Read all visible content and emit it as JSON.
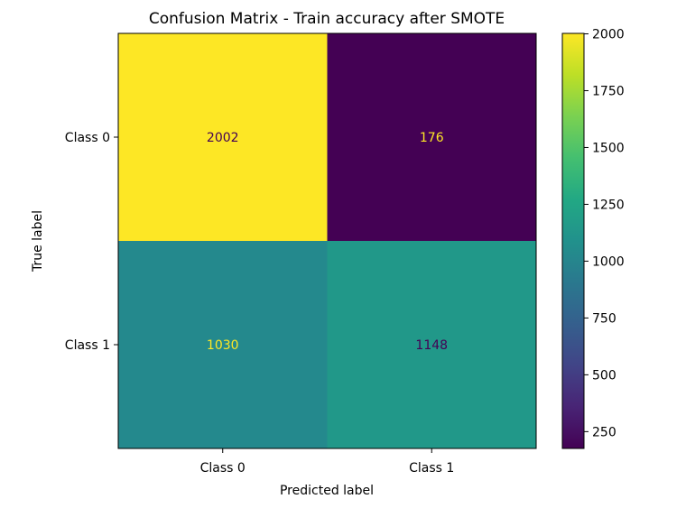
{
  "chart_data": {
    "type": "heatmap",
    "title": "Confusion Matrix - Train accuracy after SMOTE",
    "xlabel": "Predicted label",
    "ylabel": "True label",
    "x_categories": [
      "Class 0",
      "Class 1"
    ],
    "y_categories": [
      "Class 0",
      "Class 1"
    ],
    "values": [
      [
        2002,
        176
      ],
      [
        1030,
        1148
      ]
    ],
    "colormap": "viridis",
    "color_range": [
      176,
      2002
    ],
    "colorbar_ticks": [
      250,
      500,
      750,
      1000,
      1250,
      1500,
      1750,
      2000
    ],
    "text_color_dark": "#440154",
    "text_color_light": "#fde725"
  }
}
